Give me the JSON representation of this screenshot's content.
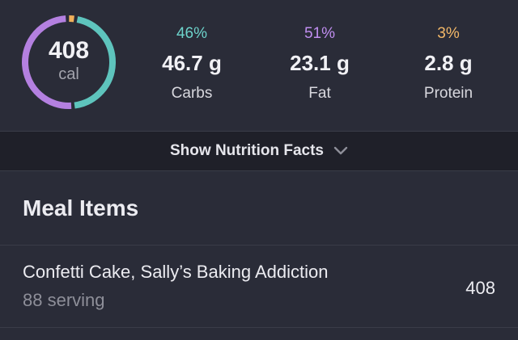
{
  "summary": {
    "calories": "408",
    "calories_unit": "cal",
    "ring": {
      "carbs_fraction": 0.46,
      "fat_fraction": 0.51,
      "protein_fraction": 0.03,
      "colors": {
        "carbs": "#5ec4bd",
        "fat": "#b480e0",
        "protein": "#f0b05a"
      }
    },
    "macros": [
      {
        "percent": "46%",
        "grams": "46.7 g",
        "label": "Carbs",
        "color": "#6dd3cb"
      },
      {
        "percent": "51%",
        "grams": "23.1 g",
        "label": "Fat",
        "color": "#c08ef0"
      },
      {
        "percent": "3%",
        "grams": "2.8 g",
        "label": "Protein",
        "color": "#f3b868"
      }
    ]
  },
  "nutrition_toggle": {
    "label": "Show Nutrition Facts",
    "icon": "chevron-down-icon"
  },
  "meal_items": {
    "title": "Meal Items",
    "items": [
      {
        "name": "Confetti Cake, Sally’s Baking Addiction",
        "serving": "88 serving",
        "calories": "408"
      }
    ]
  }
}
